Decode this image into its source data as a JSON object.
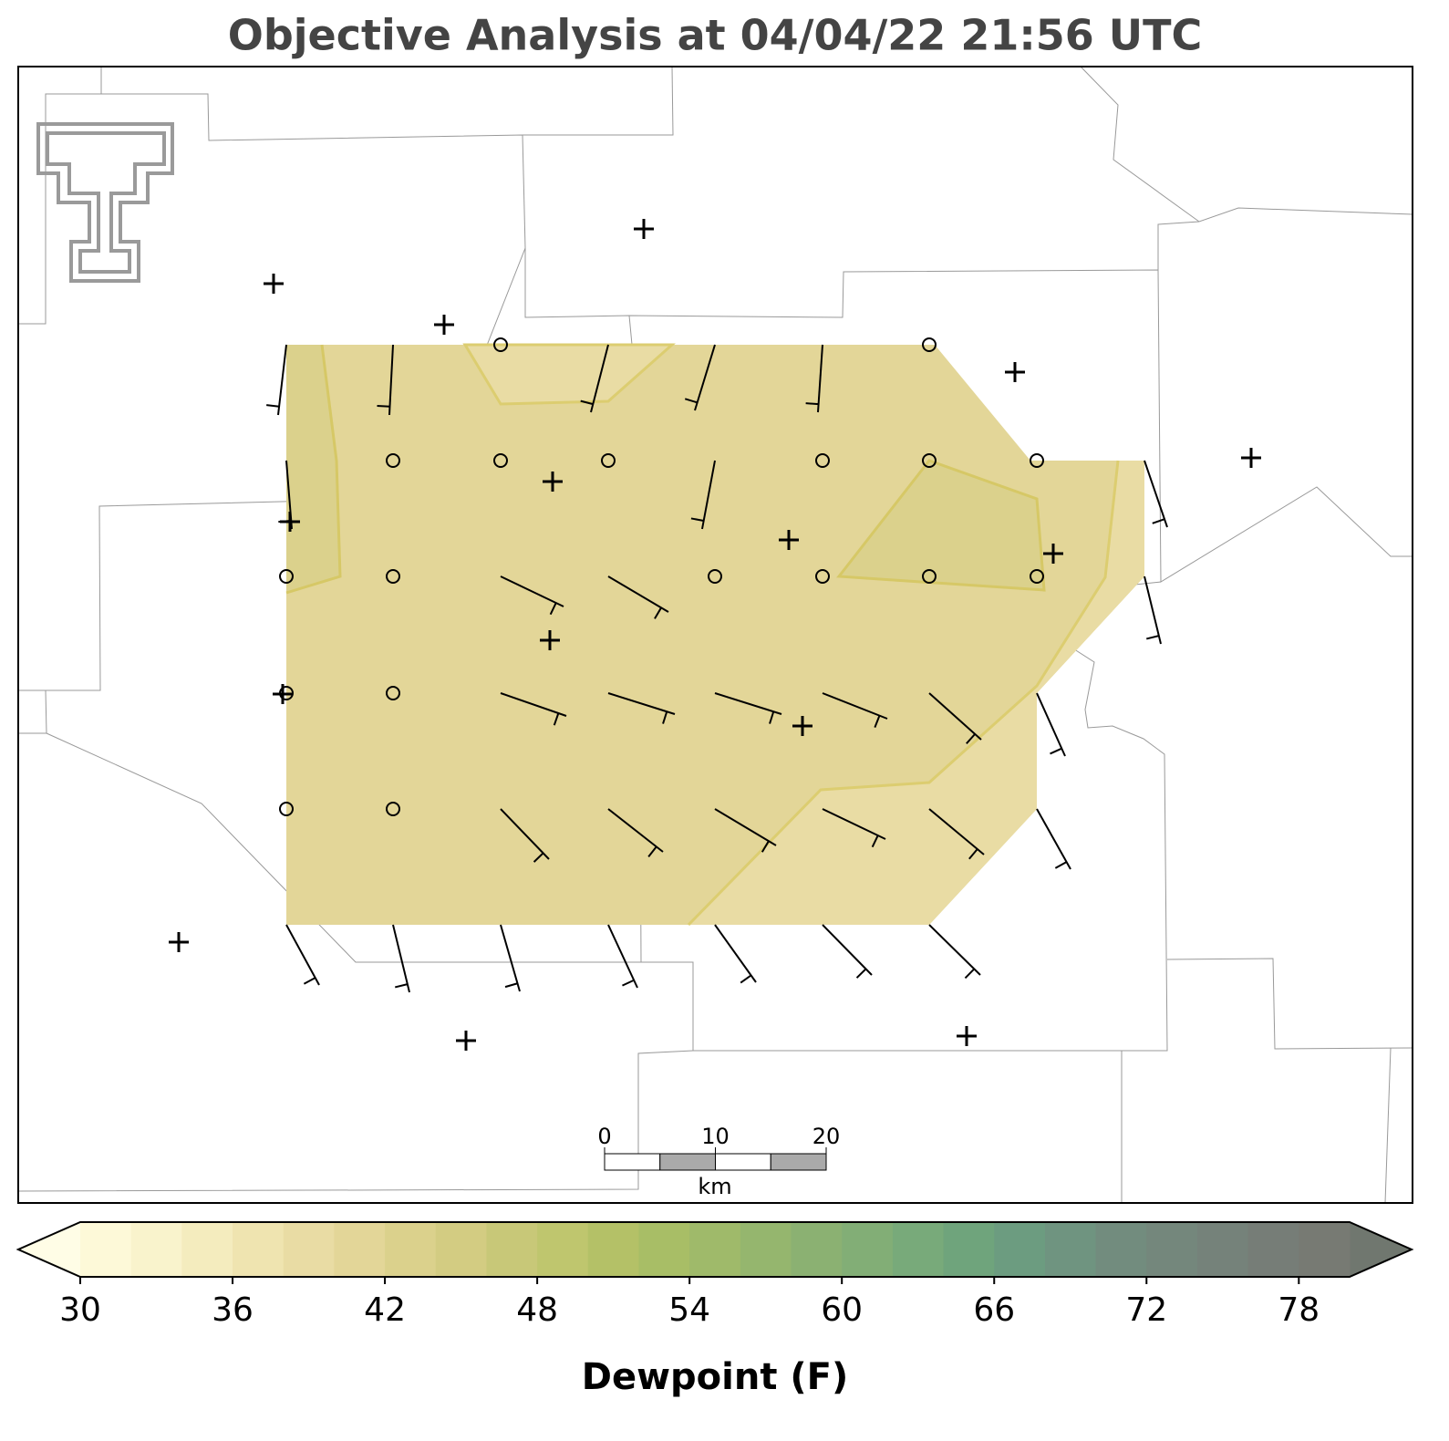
{
  "title": "Objective Analysis at 04/04/22 21:56 UTC",
  "colorbar": {
    "label": "Dewpoint (F)",
    "range": [
      30,
      80
    ],
    "ticks": [
      30,
      36,
      42,
      48,
      54,
      60,
      66,
      72,
      78
    ],
    "levels": [
      30,
      32,
      34,
      36,
      38,
      40,
      42,
      44,
      46,
      48,
      50,
      52,
      54,
      56,
      58,
      60,
      62,
      64,
      66,
      68,
      70,
      72,
      74,
      76,
      78,
      80
    ],
    "colors": [
      "#fdf9d8",
      "#f9f3cc",
      "#f4ecbe",
      "#efe4b0",
      "#e9dca4",
      "#e3d698",
      "#dbd18c",
      "#d3cc82",
      "#c8c878",
      "#bfc66e",
      "#b4c167",
      "#a8be66",
      "#9fba6a",
      "#95b66e",
      "#8bb172",
      "#82ae76",
      "#78aa7a",
      "#6fa47c",
      "#6c9c80",
      "#6f9480",
      "#728c7e",
      "#74877c",
      "#75827a",
      "#767d77",
      "#777a73"
    ],
    "under_color": "#fffde6",
    "over_color": "#70776f"
  },
  "scale_bar": {
    "ticks": [
      0,
      10,
      20
    ],
    "unit": "km"
  }
}
